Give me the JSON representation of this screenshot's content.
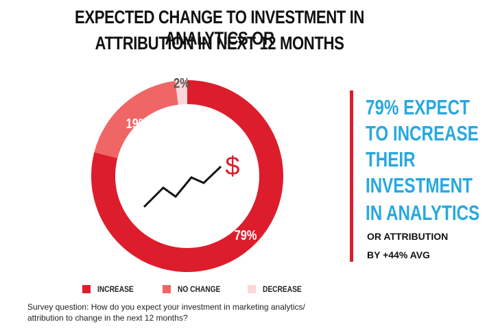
{
  "colors": {
    "increase": "#dd1d2c",
    "no_change": "#f06565",
    "decrease": "#fcd6d8",
    "accent_blue": "#27a8e0",
    "callout_bar": "#dd1d2c",
    "dark_text": "#111111",
    "line_icon": "#111111",
    "dollar": "#dd1d2c"
  },
  "header": {
    "title_line1": "EXPECTED CHANGE TO INVESTMENT IN ANALYTICS OR",
    "title_line2": "ATTRIBUTION IN NEXT 12 MONTHS"
  },
  "chart_data": {
    "type": "pie",
    "style": "donut",
    "title": "EXPECTED CHANGE TO INVESTMENT IN ANALYTICS OR ATTRIBUTION IN NEXT 12 MONTHS",
    "categories": [
      "INCREASE",
      "NO CHANGE",
      "DECREASE"
    ],
    "values": [
      79,
      19,
      2
    ],
    "data_labels": [
      "79%",
      "19%",
      "2%"
    ],
    "legend_placement": "bottom"
  },
  "center_icon": {
    "name": "rising-trend-line-icon",
    "symbol": "$"
  },
  "callout": {
    "big_lines": [
      "79% EXPECT",
      "TO INCREASE",
      "THEIR",
      "INVESTMENT",
      "IN ANALYTICS"
    ],
    "small_lines": [
      "OR ATTRIBUTION",
      "BY +44% AVG"
    ]
  },
  "legend": {
    "items": [
      {
        "label": "INCREASE",
        "color_key": "increase"
      },
      {
        "label": "NO CHANGE",
        "color_key": "no_change"
      },
      {
        "label": "DECREASE",
        "color_key": "decrease"
      }
    ]
  },
  "footnote": {
    "line1": "Survey question: How do you expect your investment in marketing analytics/",
    "line2": "attribution to change in the next 12 months?"
  }
}
